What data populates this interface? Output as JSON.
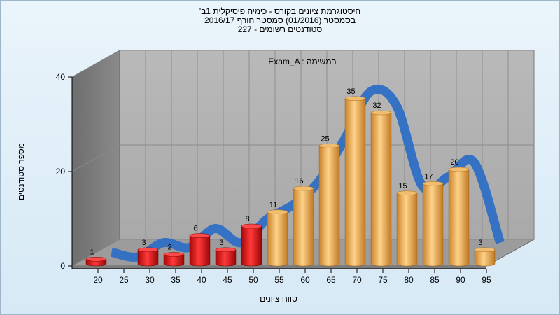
{
  "chart_data": {
    "type": "bar",
    "title": "היסטוגרמת ציונים בקורס - כימיה פיסיקלית 1ב'",
    "subtitle": "בסמסטר (01/2016) סמסטר חורף 2016/17",
    "subtitle2": "סטודנטים רשומים - 227",
    "annotation": "Exam_A : במשימה",
    "xlabel": "טווח ציונים",
    "ylabel": "מספר סטודנטים",
    "ylim": [
      0,
      40
    ],
    "yticks": [
      "0",
      "20",
      "40"
    ],
    "categories": [
      "20",
      "25",
      "30",
      "35",
      "40",
      "45",
      "50",
      "55",
      "60",
      "65",
      "70",
      "75",
      "80",
      "85",
      "90",
      "95"
    ],
    "values": [
      1,
      0,
      3,
      2,
      6,
      3,
      8,
      11,
      16,
      25,
      35,
      32,
      15,
      17,
      20,
      3
    ],
    "value_labels": [
      "1",
      "",
      "3",
      "2",
      "6",
      "3",
      "8",
      "11",
      "16",
      "25",
      "35",
      "32",
      "15",
      "17",
      "20",
      "3"
    ],
    "fail_color": "#e01818",
    "pass_color": "#e8a84a",
    "trend_color": "#2f6fc4",
    "grid": true
  }
}
